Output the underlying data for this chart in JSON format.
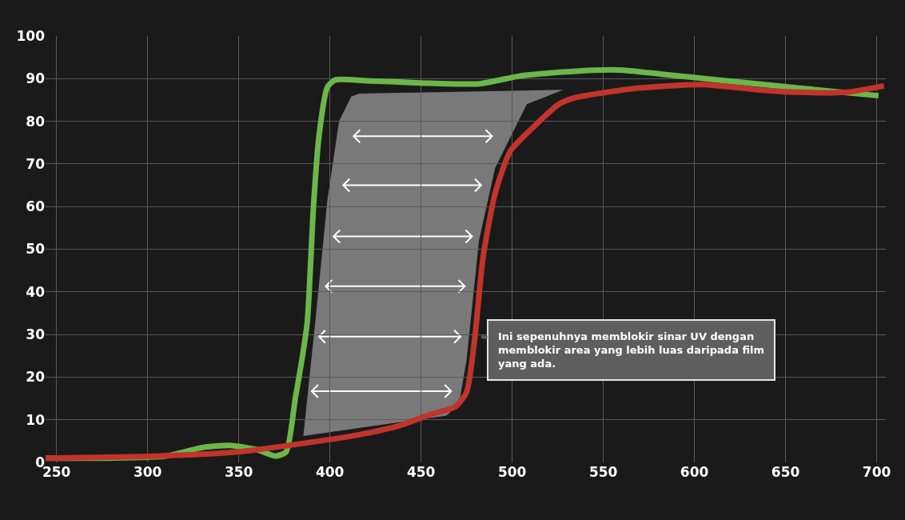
{
  "chart_data": {
    "type": "line",
    "xlim": [
      244,
      705
    ],
    "xticks": [
      250,
      300,
      350,
      400,
      450,
      500,
      550,
      600,
      650,
      700
    ],
    "ylim": [
      0,
      100
    ],
    "yticks": [
      0,
      10,
      20,
      30,
      40,
      50,
      60,
      70,
      80,
      90,
      100
    ],
    "grid": true,
    "marker": "none",
    "line_style": "solid",
    "series": [
      {
        "color": "#6cb64a",
        "x": [
          244,
          280,
          310,
          330,
          345,
          360,
          370,
          376,
          381,
          385,
          387.6,
          391,
          394,
          398.6,
          403,
          420,
          450,
          482,
          504,
          526,
          545,
          561,
          583,
          613,
          657,
          701
        ],
        "values": [
          1,
          1,
          1.5,
          3.5,
          4,
          3,
          1.5,
          2.5,
          15,
          25,
          33,
          60,
          76.5,
          88,
          89.7,
          89.5,
          89,
          88.8,
          90.6,
          91.5,
          92,
          92,
          91,
          89.7,
          87.8,
          86
        ]
      },
      {
        "color": "#c0342c",
        "x": [
          244,
          306.5,
          350,
          394,
          416,
          438,
          455.5,
          468.7,
          475,
          479.6,
          484,
          490.6,
          499,
          512.5,
          525.6,
          534,
          569.5,
          604.5,
          635,
          657,
          683,
          704
        ],
        "values": [
          1,
          1.5,
          2.5,
          5,
          6.5,
          8.6,
          11.3,
          13,
          16.5,
          29.6,
          48,
          63,
          73,
          79,
          84,
          85.5,
          87.8,
          88.6,
          87.4,
          86.8,
          86.8,
          88.3
        ]
      }
    ],
    "annotations": [
      {
        "text": "Ini sepenuhnya memblokir sinar UV dengan memblokir area yang lebih luas daripada film yang ada.",
        "x": 478.7,
        "y": 29.6
      }
    ]
  }
}
